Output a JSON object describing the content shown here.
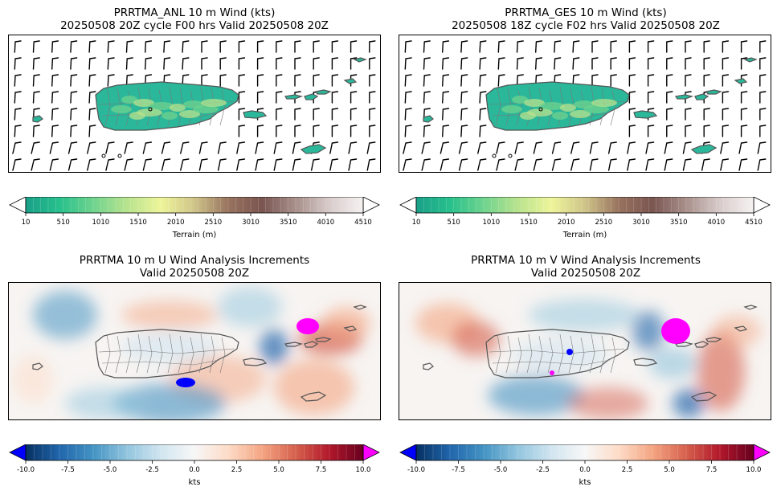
{
  "panels": [
    {
      "title_line1": "PRRTMA_ANL 10 m Wind (kts)",
      "title_line2": "20250508 20Z cycle F00 hrs Valid 20250508 20Z"
    },
    {
      "title_line1": "PRRTMA_GES 10 m Wind (kts)",
      "title_line2": "20250508 18Z cycle F02 hrs Valid 20250508 20Z"
    },
    {
      "title_line1": "PRRTMA 10 m U Wind Analysis Increments",
      "title_line2": "Valid 20250508 20Z"
    },
    {
      "title_line1": "PRRTMA 10 m V Wind Analysis Increments",
      "title_line2": "Valid 20250508 20Z"
    }
  ],
  "terrain_colorbar": {
    "label": "Terrain (m)",
    "ticks": [
      "10",
      "510",
      "1010",
      "1510",
      "2010",
      "2510",
      "3010",
      "3510",
      "4010",
      "4510"
    ],
    "colors": [
      "#1aa089",
      "#27c08c",
      "#6fd38e",
      "#b8e38e",
      "#eef59a",
      "#cfc489",
      "#98735f",
      "#7a5550",
      "#a8908b",
      "#d8cccb",
      "#f6f2f2"
    ]
  },
  "increment_colorbar": {
    "label": "kts",
    "ticks": [
      "-10.0",
      "-7.5",
      "-5.0",
      "-2.5",
      "0.0",
      "2.5",
      "5.0",
      "7.5",
      "10.0"
    ],
    "under_color": "#0000ff",
    "over_color": "#ff00ff",
    "colors": [
      "#053061",
      "#2166ac",
      "#4393c3",
      "#92c5de",
      "#d1e5f0",
      "#f7f7f7",
      "#fddbc7",
      "#f4a582",
      "#d6604d",
      "#b2182b",
      "#67001f"
    ]
  },
  "chart_data": [
    {
      "type": "heatmap",
      "title": "PRRTMA_ANL 10 m Wind (kts)",
      "subtitle": "20250508 20Z cycle F00 hrs Valid 20250508 20Z",
      "field": "terrain + wind barbs",
      "colorbar_label": "Terrain (m)",
      "crange": [
        10,
        4510
      ]
    },
    {
      "type": "heatmap",
      "title": "PRRTMA_GES 10 m Wind (kts)",
      "subtitle": "20250508 18Z cycle F02 hrs Valid 20250508 20Z",
      "field": "terrain + wind barbs",
      "colorbar_label": "Terrain (m)",
      "crange": [
        10,
        4510
      ]
    },
    {
      "type": "heatmap",
      "title": "PRRTMA 10 m U Wind Analysis Increments",
      "subtitle": "Valid 20250508 20Z",
      "colorbar_label": "kts",
      "crange": [
        -10,
        10
      ]
    },
    {
      "type": "heatmap",
      "title": "PRRTMA 10 m V Wind Analysis Increments",
      "subtitle": "Valid 20250508 20Z",
      "colorbar_label": "kts",
      "crange": [
        -10,
        10
      ]
    }
  ]
}
